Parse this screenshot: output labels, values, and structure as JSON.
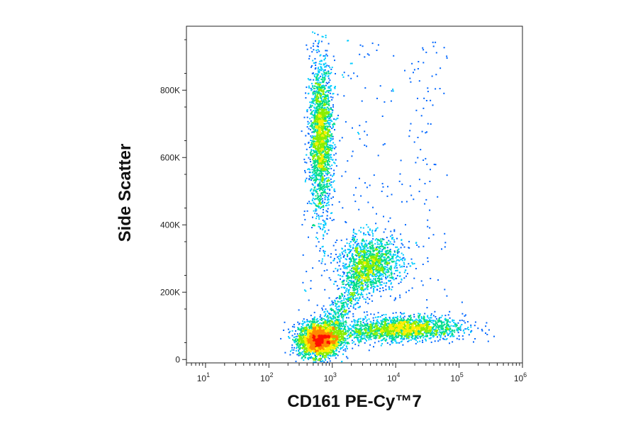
{
  "chart_data": {
    "type": "scatter",
    "subtype": "flow-cytometry-density-dot-plot",
    "title": "",
    "xlabel": "CD161 PE-Cy™7",
    "ylabel": "Side Scatter",
    "x_scale": "log",
    "y_scale": "linear",
    "xlim": [
      5,
      1000000
    ],
    "ylim": [
      -10000,
      990000
    ],
    "x_ticks": [
      {
        "value": 10,
        "base": "10",
        "exp": "1"
      },
      {
        "value": 100,
        "base": "10",
        "exp": "2"
      },
      {
        "value": 1000,
        "base": "10",
        "exp": "3"
      },
      {
        "value": 10000,
        "base": "10",
        "exp": "4"
      },
      {
        "value": 100000,
        "base": "10",
        "exp": "5"
      },
      {
        "value": 1000000,
        "base": "10",
        "exp": "6"
      }
    ],
    "y_ticks": [
      {
        "value": 0,
        "label": "0"
      },
      {
        "value": 200000,
        "label": "200K"
      },
      {
        "value": 400000,
        "label": "400K"
      },
      {
        "value": 600000,
        "label": "600K"
      },
      {
        "value": 800000,
        "label": "800K"
      }
    ],
    "grid": false,
    "legend": "none",
    "color_scale": [
      "#0000dd",
      "#0066ff",
      "#00ccff",
      "#00dd88",
      "#88ee00",
      "#ffee00",
      "#ff8800",
      "#ff1100"
    ],
    "populations": [
      {
        "x_center": 600,
        "y_center": 60000,
        "x_spread_decades": 0.16,
        "y_spread": 25000,
        "relative_density": 1.0
      },
      {
        "x_center": 650,
        "y_center": 660000,
        "x_spread_decades": 0.09,
        "y_spread": 110000,
        "relative_density": 0.75
      },
      {
        "x_center": 4000,
        "y_center": 290000,
        "x_spread_decades": 0.25,
        "y_spread": 40000,
        "relative_density": 0.45
      },
      {
        "x_center": 15000,
        "y_center": 95000,
        "x_spread_decades": 0.45,
        "y_spread": 18000,
        "relative_density": 0.55
      }
    ]
  }
}
